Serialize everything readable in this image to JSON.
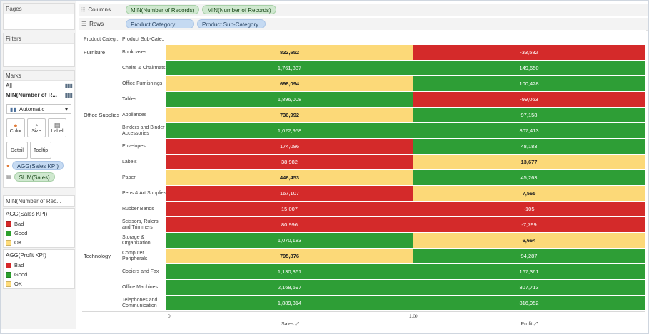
{
  "left_pane": {
    "pages_title": "Pages",
    "filters_title": "Filters",
    "marks_title": "Marks",
    "marks_rows": [
      {
        "label": "All",
        "icon": "bar-chart-icon"
      },
      {
        "label": "MIN(Number of R...",
        "icon": "bar-chart-icon"
      }
    ],
    "mark_type": "Automatic",
    "buttons": [
      {
        "label": "Color",
        "icon": "color-icon"
      },
      {
        "label": "Size",
        "icon": "size-icon"
      },
      {
        "label": "Label",
        "icon": "label-icon"
      }
    ],
    "buttons2": [
      {
        "label": "Detail"
      },
      {
        "label": "Tooltip"
      }
    ],
    "marks_fields": [
      {
        "label": "AGG(Sales KPI)",
        "color": "#c5daf2"
      },
      {
        "label": "SUM(Sales)",
        "color": "#cfe8cf"
      }
    ],
    "measure_card_title": "MIN(Number of Rec...",
    "legends": [
      {
        "title": "AGG(Sales KPI)",
        "items": [
          {
            "label": "Bad",
            "color": "#d62728"
          },
          {
            "label": "Good",
            "color": "#2ca02c"
          },
          {
            "label": "OK",
            "color": "#ffdc7a"
          }
        ]
      },
      {
        "title": "AGG(Profit KPI)",
        "items": [
          {
            "label": "Bad",
            "color": "#d62728"
          },
          {
            "label": "Good",
            "color": "#2ca02c"
          },
          {
            "label": "OK",
            "color": "#ffdc7a"
          }
        ]
      }
    ]
  },
  "shelves": {
    "columns_label": "Columns",
    "columns_pills": [
      "MIN(Number of Records)",
      "MIN(Number of Records)"
    ],
    "rows_label": "Rows",
    "rows_pills": [
      "Product Category",
      "Product Sub-Category"
    ]
  },
  "table": {
    "header_category": "Product Categ..",
    "header_subcategory": "Product Sub-Cate..",
    "categories": [
      {
        "name": "Furniture",
        "rows": [
          0,
          3
        ]
      },
      {
        "name": "Office Supplies",
        "rows": [
          4,
          12
        ]
      },
      {
        "name": "Technology",
        "rows": [
          13,
          16
        ]
      }
    ],
    "rows": [
      {
        "sub": "Bookcases",
        "sales": "822,652",
        "sales_kpi": "ok",
        "profit": "-33,582",
        "profit_kpi": "bad"
      },
      {
        "sub": "Chairs & Chairmats",
        "sales": "1,761,837",
        "sales_kpi": "good",
        "profit": "149,650",
        "profit_kpi": "good"
      },
      {
        "sub": "Office Furnishings",
        "sales": "698,094",
        "sales_kpi": "ok",
        "profit": "100,428",
        "profit_kpi": "good"
      },
      {
        "sub": "Tables",
        "sales": "1,896,008",
        "sales_kpi": "good",
        "profit": "-99,063",
        "profit_kpi": "bad"
      },
      {
        "sub": "Appliances",
        "sales": "736,992",
        "sales_kpi": "ok",
        "profit": "97,158",
        "profit_kpi": "good"
      },
      {
        "sub": "Binders and Binder Accessories",
        "sales": "1,022,958",
        "sales_kpi": "good",
        "profit": "307,413",
        "profit_kpi": "good"
      },
      {
        "sub": "Envelopes",
        "sales": "174,086",
        "sales_kpi": "bad",
        "profit": "48,183",
        "profit_kpi": "good"
      },
      {
        "sub": "Labels",
        "sales": "38,982",
        "sales_kpi": "bad",
        "profit": "13,677",
        "profit_kpi": "ok"
      },
      {
        "sub": "Paper",
        "sales": "446,453",
        "sales_kpi": "ok",
        "profit": "45,263",
        "profit_kpi": "good"
      },
      {
        "sub": "Pens & Art Supplies",
        "sales": "167,107",
        "sales_kpi": "bad",
        "profit": "7,565",
        "profit_kpi": "ok"
      },
      {
        "sub": "Rubber Bands",
        "sales": "15,007",
        "sales_kpi": "bad",
        "profit": "-105",
        "profit_kpi": "bad"
      },
      {
        "sub": "Scissors, Rulers and Trimmers",
        "sales": "80,996",
        "sales_kpi": "bad",
        "profit": "-7,799",
        "profit_kpi": "bad"
      },
      {
        "sub": "Storage & Organization",
        "sales": "1,070,183",
        "sales_kpi": "good",
        "profit": "6,664",
        "profit_kpi": "ok"
      },
      {
        "sub": "Computer Peripherals",
        "sales": "795,876",
        "sales_kpi": "ok",
        "profit": "94,287",
        "profit_kpi": "good"
      },
      {
        "sub": "Copiers and Fax",
        "sales": "1,130,361",
        "sales_kpi": "good",
        "profit": "167,361",
        "profit_kpi": "good"
      },
      {
        "sub": "Office Machines",
        "sales": "2,168,697",
        "sales_kpi": "good",
        "profit": "307,713",
        "profit_kpi": "good"
      },
      {
        "sub": "Telephones and Communication",
        "sales": "1,889,314",
        "sales_kpi": "good",
        "profit": "316,952",
        "profit_kpi": "good"
      }
    ],
    "kpi_colors": {
      "good": "#2e9e36",
      "bad": "#d42a2a",
      "ok": "#fcd978"
    },
    "axis": {
      "tick_start": "0",
      "tick_mid": "1.0",
      "sales_title": "Sales",
      "profit_title": "Profit"
    }
  }
}
